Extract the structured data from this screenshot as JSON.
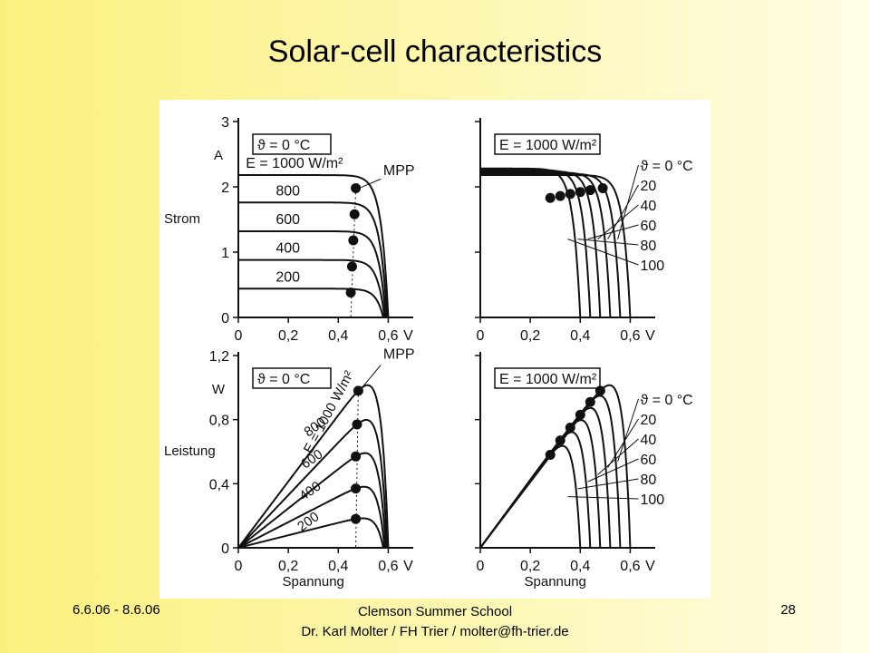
{
  "slide": {
    "title": "Solar-cell characteristics",
    "footer_left": "6.6.06 - 8.6.06",
    "footer_center_line1": "Clemson Summer School",
    "footer_center_line2": "Dr. Karl Molter / FH Trier / molter@fh-trier.de",
    "page_number": "28"
  },
  "colors": {
    "ink": "#111111",
    "panel": "#ffffff",
    "slide_bg_left": "#fbf07e",
    "slide_bg_right": "#fffde6"
  },
  "chart_data": [
    {
      "id": "iv-irradiance",
      "type": "line",
      "title": "",
      "box_label": "ϑ = 0 °C",
      "ylabel": "Strom",
      "yunit": "A",
      "xlabel": "",
      "xunit": "V",
      "xlim": [
        0,
        0.7
      ],
      "ylim": [
        0,
        3
      ],
      "xticks": [
        "0",
        "0,2",
        "0,4",
        "0,6"
      ],
      "yticks": [
        "0",
        "1",
        "2",
        "3"
      ],
      "mpp_label": "MPP",
      "series": [
        {
          "name": "E = 1000 W/m²",
          "isc": 2.18,
          "voc": 0.6,
          "mpp": [
            0.47,
            1.98
          ]
        },
        {
          "name": "800",
          "isc": 1.76,
          "voc": 0.595,
          "mpp": [
            0.465,
            1.58
          ]
        },
        {
          "name": "600",
          "isc": 1.32,
          "voc": 0.59,
          "mpp": [
            0.46,
            1.18
          ]
        },
        {
          "name": "400",
          "isc": 0.88,
          "voc": 0.585,
          "mpp": [
            0.455,
            0.78
          ]
        },
        {
          "name": "200",
          "isc": 0.44,
          "voc": 0.58,
          "mpp": [
            0.45,
            0.38
          ]
        }
      ]
    },
    {
      "id": "iv-temperature",
      "type": "line",
      "title": "",
      "box_label": "E = 1000 W/m²",
      "ylabel": "",
      "xlabel": "",
      "xunit": "V",
      "xlim": [
        0,
        0.7
      ],
      "ylim": [
        0,
        3
      ],
      "xticks": [
        "0",
        "0,2",
        "0,4",
        "0,6"
      ],
      "series": [
        {
          "name": "ϑ = 0 °C",
          "isc": 2.18,
          "voc": 0.6,
          "mpp": [
            0.49,
            1.98
          ]
        },
        {
          "name": "20",
          "isc": 2.2,
          "voc": 0.56,
          "mpp": [
            0.44,
            1.95
          ]
        },
        {
          "name": "40",
          "isc": 2.22,
          "voc": 0.52,
          "mpp": [
            0.4,
            1.92
          ]
        },
        {
          "name": "60",
          "isc": 2.24,
          "voc": 0.48,
          "mpp": [
            0.36,
            1.89
          ]
        },
        {
          "name": "80",
          "isc": 2.26,
          "voc": 0.44,
          "mpp": [
            0.32,
            1.86
          ]
        },
        {
          "name": "100",
          "isc": 2.28,
          "voc": 0.4,
          "mpp": [
            0.28,
            1.83
          ]
        }
      ]
    },
    {
      "id": "pv-irradiance",
      "type": "line",
      "title": "",
      "box_label": "ϑ = 0 °C",
      "ylabel": "Leistung",
      "yunit": "W",
      "xlabel": "Spannung",
      "xunit": "V",
      "xlim": [
        0,
        0.7
      ],
      "ylim": [
        0,
        1.2
      ],
      "xticks": [
        "0",
        "0,2",
        "0,4",
        "0,6"
      ],
      "yticks": [
        "0",
        "0,4",
        "0,8",
        "1,2"
      ],
      "mpp_label": "MPP",
      "series": [
        {
          "name": "E = 1000 W/m²",
          "isc": 2.18,
          "voc": 0.6,
          "mpp": [
            0.48,
            0.98
          ]
        },
        {
          "name": "800",
          "isc": 1.76,
          "voc": 0.595,
          "mpp": [
            0.475,
            0.77
          ]
        },
        {
          "name": "600",
          "isc": 1.32,
          "voc": 0.59,
          "mpp": [
            0.47,
            0.57
          ]
        },
        {
          "name": "400",
          "isc": 0.88,
          "voc": 0.585,
          "mpp": [
            0.47,
            0.37
          ]
        },
        {
          "name": "200",
          "isc": 0.44,
          "voc": 0.58,
          "mpp": [
            0.47,
            0.18
          ]
        }
      ]
    },
    {
      "id": "pv-temperature",
      "type": "line",
      "title": "",
      "box_label": "E = 1000 W/m²",
      "ylabel": "",
      "xlabel": "Spannung",
      "xunit": "V",
      "xlim": [
        0,
        0.7
      ],
      "ylim": [
        0,
        1.2
      ],
      "xticks": [
        "0",
        "0,2",
        "0,4",
        "0,6"
      ],
      "series": [
        {
          "name": "ϑ = 0 °C",
          "isc": 2.18,
          "voc": 0.6,
          "mpp": [
            0.48,
            0.98
          ]
        },
        {
          "name": "20",
          "isc": 2.2,
          "voc": 0.56,
          "mpp": [
            0.44,
            0.91
          ]
        },
        {
          "name": "40",
          "isc": 2.22,
          "voc": 0.52,
          "mpp": [
            0.4,
            0.83
          ]
        },
        {
          "name": "60",
          "isc": 2.24,
          "voc": 0.48,
          "mpp": [
            0.36,
            0.75
          ]
        },
        {
          "name": "80",
          "isc": 2.26,
          "voc": 0.44,
          "mpp": [
            0.32,
            0.67
          ]
        },
        {
          "name": "100",
          "isc": 2.28,
          "voc": 0.4,
          "mpp": [
            0.28,
            0.58
          ]
        }
      ]
    }
  ]
}
